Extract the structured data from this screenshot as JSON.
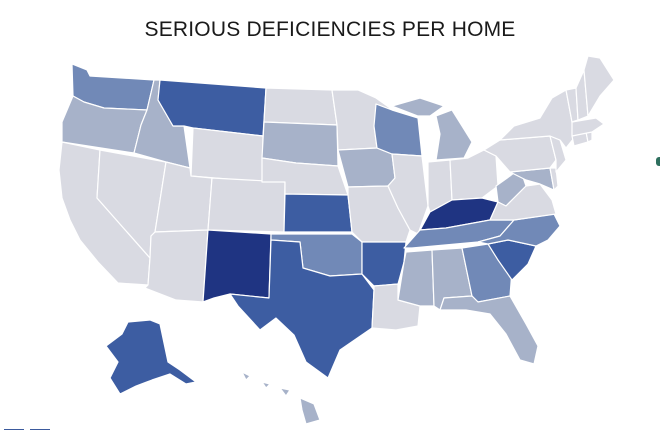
{
  "title": "SERIOUS DEFICIENCIES PER HOME",
  "colors": {
    "level0": "#d9dae2",
    "level1": "#a7b2c9",
    "level2": "#7189b7",
    "level3": "#3d5da2",
    "level4": "#1f3482",
    "border": "#ffffff"
  },
  "states": {
    "WA": 2,
    "OR": 1,
    "CA": 0,
    "NV": 0,
    "ID": 1,
    "MT": 3,
    "WY": 0,
    "UT": 0,
    "AZ": 0,
    "CO": 0,
    "NM": 4,
    "ND": 0,
    "SD": 1,
    "NE": 0,
    "KS": 3,
    "OK": 2,
    "TX": 3,
    "MN": 0,
    "IA": 1,
    "MO": 0,
    "AR": 3,
    "LA": 0,
    "WI": 2,
    "IL": 0,
    "MI": 1,
    "IN": 0,
    "OH": 0,
    "KY": 4,
    "TN": 2,
    "MS": 1,
    "AL": 1,
    "GA": 2,
    "FL": 1,
    "SC": 3,
    "NC": 2,
    "VA": 0,
    "WV": 1,
    "PA": 0,
    "NY": 0,
    "ME": 0,
    "NH": 0,
    "VT": 0,
    "MA": 0,
    "CT": 0,
    "RI": 0,
    "NJ": 0,
    "DE": 0,
    "MD": 1,
    "AK": 3,
    "HI": 1
  }
}
